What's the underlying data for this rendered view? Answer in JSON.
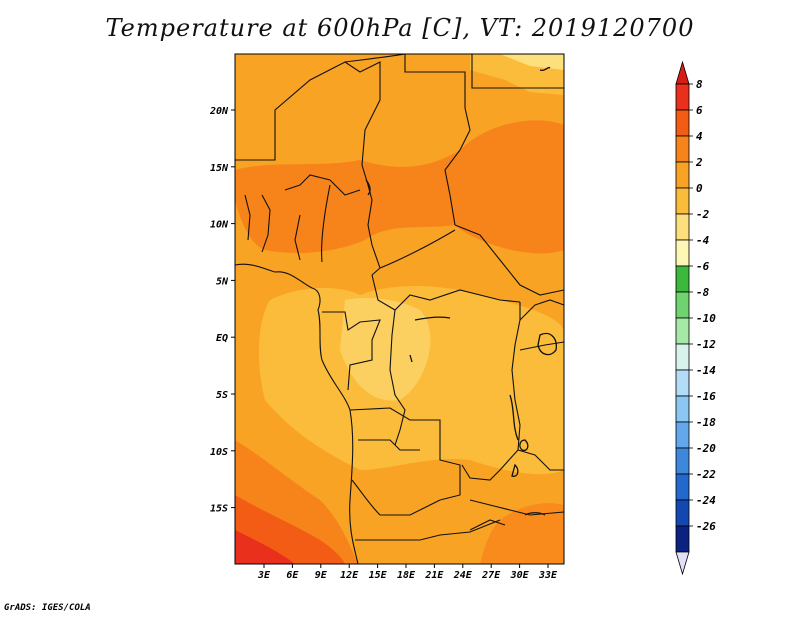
{
  "title": "Temperature at 600hPa [C], VT: 2019120700",
  "credit": "GrADS: IGES/COLA",
  "map": {
    "lat_labels": [
      "20N",
      "15N",
      "10N",
      "5N",
      "EQ",
      "5S",
      "10S",
      "15S"
    ],
    "lon_labels": [
      "3E",
      "6E",
      "9E",
      "12E",
      "15E",
      "18E",
      "21E",
      "24E",
      "27E",
      "30E",
      "33E"
    ]
  },
  "colorbar": {
    "labels": [
      "8",
      "6",
      "4",
      "2",
      "0",
      "-2",
      "-4",
      "-6",
      "-8",
      "-10",
      "-12",
      "-14",
      "-16",
      "-18",
      "-20",
      "-22",
      "-24",
      "-26"
    ],
    "colors": [
      "#e8301c",
      "#f25c14",
      "#f7841a",
      "#f9a325",
      "#fbbc3c",
      "#fde07e",
      "#fef6b5",
      "#3cb93c",
      "#6fd46f",
      "#a6e8a6",
      "#d8f2ec",
      "#b3dcf7",
      "#8cc6f2",
      "#62a8ea",
      "#3e88dc",
      "#2368cc",
      "#1348b0",
      "#0b2280"
    ],
    "top_color": "#d81d14",
    "bottom_color": "#e0e0f7"
  }
}
